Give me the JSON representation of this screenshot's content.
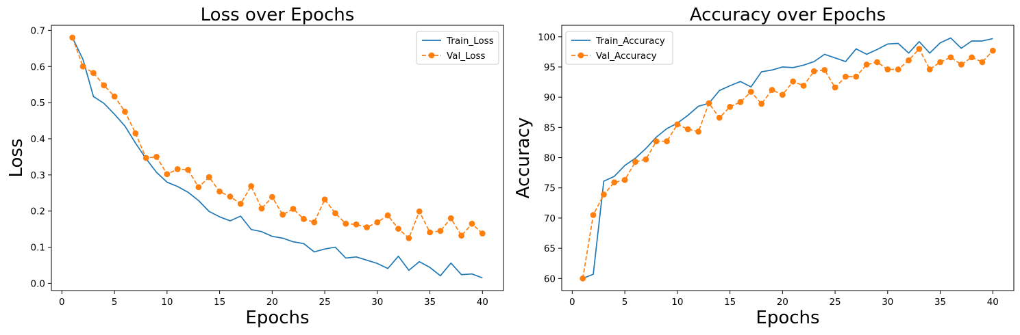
{
  "chart_data": [
    {
      "type": "line",
      "title": "Loss over Epochs",
      "xlabel": "Epochs",
      "ylabel": "Loss",
      "xlim": [
        -1,
        42
      ],
      "ylim": [
        -0.02,
        0.714
      ],
      "xticks": [
        0,
        5,
        10,
        15,
        20,
        25,
        30,
        35,
        40
      ],
      "yticks": [
        0.0,
        0.1,
        0.2,
        0.3,
        0.4,
        0.5,
        0.6,
        0.7
      ],
      "ytick_labels": [
        "0.0",
        "0.1",
        "0.2",
        "0.3",
        "0.4",
        "0.5",
        "0.6",
        "0.7"
      ],
      "legend_position": "top-right",
      "x": [
        1,
        2,
        3,
        4,
        5,
        6,
        7,
        8,
        9,
        10,
        11,
        12,
        13,
        14,
        15,
        16,
        17,
        18,
        19,
        20,
        21,
        22,
        23,
        24,
        25,
        26,
        27,
        28,
        29,
        30,
        31,
        32,
        33,
        34,
        35,
        36,
        37,
        38,
        39,
        40
      ],
      "series": [
        {
          "name": "Train_Loss",
          "color": "#1f77b4",
          "style": "solid",
          "marker": "none",
          "values": [
            0.68,
            0.62,
            0.517,
            0.498,
            0.468,
            0.435,
            0.388,
            0.345,
            0.307,
            0.28,
            0.268,
            0.252,
            0.229,
            0.199,
            0.184,
            0.173,
            0.186,
            0.149,
            0.143,
            0.13,
            0.125,
            0.115,
            0.11,
            0.087,
            0.095,
            0.1,
            0.07,
            0.073,
            0.064,
            0.055,
            0.041,
            0.075,
            0.036,
            0.06,
            0.044,
            0.021,
            0.056,
            0.024,
            0.026,
            0.015
          ]
        },
        {
          "name": "Val_Loss",
          "color": "#ff7f0e",
          "style": "dashed",
          "marker": "circle",
          "values": [
            0.68,
            0.6,
            0.582,
            0.548,
            0.517,
            0.475,
            0.415,
            0.347,
            0.35,
            0.302,
            0.316,
            0.314,
            0.266,
            0.294,
            0.254,
            0.24,
            0.22,
            0.269,
            0.207,
            0.239,
            0.19,
            0.206,
            0.178,
            0.169,
            0.232,
            0.194,
            0.165,
            0.163,
            0.155,
            0.169,
            0.188,
            0.151,
            0.125,
            0.199,
            0.141,
            0.145,
            0.18,
            0.132,
            0.165,
            0.138
          ]
        }
      ]
    },
    {
      "type": "line",
      "title": "Accuracy over Epochs",
      "xlabel": "Epochs",
      "ylabel": "Accuracy",
      "xlim": [
        -1,
        42
      ],
      "ylim": [
        58.0,
        101.9
      ],
      "xticks": [
        0,
        5,
        10,
        15,
        20,
        25,
        30,
        35,
        40
      ],
      "yticks": [
        60,
        65,
        70,
        75,
        80,
        85,
        90,
        95,
        100
      ],
      "ytick_labels": [
        "60",
        "65",
        "70",
        "75",
        "80",
        "85",
        "90",
        "95",
        "100"
      ],
      "legend_position": "top-left",
      "x": [
        1,
        2,
        3,
        4,
        5,
        6,
        7,
        8,
        9,
        10,
        11,
        12,
        13,
        14,
        15,
        16,
        17,
        18,
        19,
        20,
        21,
        22,
        23,
        24,
        25,
        26,
        27,
        28,
        29,
        30,
        31,
        32,
        33,
        34,
        35,
        36,
        37,
        38,
        39,
        40
      ],
      "series": [
        {
          "name": "Train_Accuracy",
          "color": "#1f77b4",
          "style": "solid",
          "marker": "none",
          "values": [
            60.0,
            60.7,
            76.1,
            76.9,
            78.7,
            79.9,
            81.5,
            83.4,
            84.8,
            85.7,
            87.0,
            88.5,
            89.0,
            91.1,
            91.9,
            92.6,
            91.7,
            94.2,
            94.5,
            95.0,
            94.9,
            95.3,
            95.9,
            97.1,
            96.5,
            95.9,
            98.0,
            97.1,
            97.9,
            98.8,
            98.9,
            97.3,
            99.2,
            97.3,
            99.0,
            99.8,
            98.1,
            99.3,
            99.3,
            99.7
          ]
        },
        {
          "name": "Val_Accuracy",
          "color": "#ff7f0e",
          "style": "dashed",
          "marker": "circle",
          "values": [
            60.0,
            70.5,
            73.9,
            75.9,
            76.3,
            79.3,
            79.7,
            82.7,
            82.7,
            85.5,
            84.7,
            84.3,
            89.0,
            86.6,
            88.4,
            89.2,
            90.9,
            88.9,
            91.2,
            90.4,
            92.6,
            91.9,
            94.3,
            94.5,
            91.6,
            93.4,
            93.4,
            95.4,
            95.8,
            94.6,
            94.6,
            96.1,
            98.0,
            94.6,
            95.8,
            96.6,
            95.4,
            96.6,
            95.8,
            97.7
          ]
        }
      ]
    }
  ]
}
